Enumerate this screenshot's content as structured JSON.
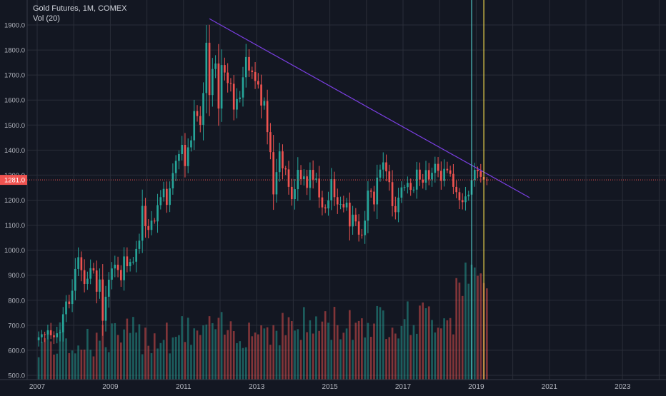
{
  "legend": {
    "symbol_line": "Gold Futures, 1M, COMEX",
    "volume_line": "Vol (20)"
  },
  "price_tag": "1281.0",
  "colors": {
    "background": "#131722",
    "grid": "#2a2e39",
    "up": "#26a69a",
    "down": "#ef5350",
    "trendline": "#7b3fe4",
    "vline_teal": "#4fc3c0",
    "vline_yellow": "#e9d24b",
    "axis_text": "#b2b5be"
  },
  "chart_data": {
    "type": "candlestick",
    "title": "Gold Futures, 1M, COMEX",
    "x_ticks": [
      "2007",
      "2009",
      "2011",
      "2013",
      "2015",
      "2017",
      "2019",
      "2021",
      "2023"
    ],
    "x_tick_years": [
      2007,
      2009,
      2011,
      2013,
      2015,
      2017,
      2019,
      2021,
      2023
    ],
    "y_ticks": [
      500.0,
      600.0,
      700.0,
      800.0,
      900.0,
      1000.0,
      1100.0,
      1200.0,
      1300.0,
      1400.0,
      1500.0,
      1600.0,
      1700.0,
      1800.0,
      1900.0
    ],
    "y_tick_labels": [
      "500.0",
      "600.0",
      "700.0",
      "800.0",
      "900.0",
      "1000.0",
      "1100.0",
      "1200.0",
      "1300.0",
      "1400.0",
      "1500.0",
      "1600.0",
      "1700.0",
      "1800.0",
      "1900.0"
    ],
    "y_range": [
      490,
      2050
    ],
    "x_range_years": [
      2006.8,
      2024.0
    ],
    "current_price": 1281.0,
    "grid": true,
    "series": [
      {
        "name": "Gold Futures",
        "type": "candlestick",
        "start": "2007-01",
        "interval": "1M",
        "closes": [
          652,
          664,
          663,
          680,
          660,
          652,
          668,
          672,
          744,
          795,
          785,
          838,
          925,
          972,
          920,
          865,
          886,
          928,
          919,
          834,
          883,
          718,
          814,
          882,
          927,
          942,
          921,
          880,
          975,
          936,
          953,
          954,
          1005,
          1038,
          1177,
          1096,
          1081,
          1118,
          1115,
          1180,
          1212,
          1245,
          1181,
          1247,
          1308,
          1357,
          1384,
          1421,
          1336,
          1411,
          1439,
          1556,
          1536,
          1501,
          1628,
          1829,
          1620,
          1724,
          1746,
          1566,
          1740,
          1710,
          1668,
          1665,
          1562,
          1604,
          1610,
          1691,
          1772,
          1718,
          1712,
          1676,
          1662,
          1578,
          1596,
          1472,
          1392,
          1223,
          1312,
          1395,
          1327,
          1323,
          1253,
          1204,
          1244,
          1321,
          1284,
          1295,
          1249,
          1321,
          1282,
          1286,
          1211,
          1171,
          1167,
          1199,
          1284,
          1212,
          1183,
          1184,
          1171,
          1190,
          1095,
          1142,
          1115,
          1062,
          1060,
          1118,
          1238,
          1234,
          1183,
          1290,
          1322,
          1351,
          1315,
          1272,
          1176,
          1152,
          1210,
          1251,
          1252,
          1269,
          1241,
          1242,
          1322,
          1282,
          1270,
          1320,
          1283,
          1309,
          1345,
          1317,
          1277,
          1325,
          1319,
          1305,
          1253,
          1232,
          1200,
          1192,
          1215,
          1222,
          1281,
          1321,
          1316,
          1293,
          1282,
          1281
        ]
      },
      {
        "name": "Vol (20)",
        "type": "volume",
        "note": "relative volume bars"
      }
    ],
    "annotations": [
      {
        "type": "trendline",
        "from": {
          "date": "2011-09",
          "price": 1925
        },
        "to": {
          "date": "2020-06",
          "price": 1210
        }
      },
      {
        "type": "vertical_line",
        "date": "2018-11",
        "color": "teal"
      },
      {
        "type": "vertical_line",
        "date": "2019-03",
        "color": "yellow"
      },
      {
        "type": "horizontal_line",
        "price": 1281.0,
        "style": "dotted",
        "color": "red"
      }
    ]
  }
}
